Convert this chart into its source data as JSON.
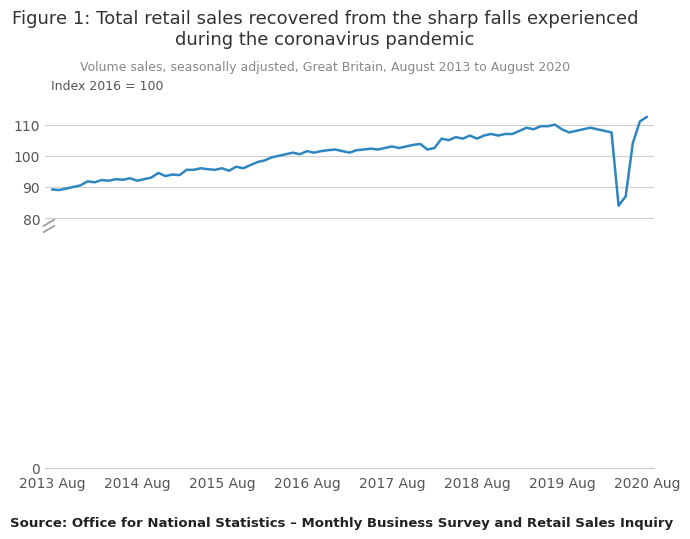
{
  "title": "Figure 1: Total retail sales recovered from the sharp falls experienced\nduring the coronavirus pandemic",
  "subtitle": "Volume sales, seasonally adjusted, Great Britain, August 2013 to August 2020",
  "ylabel_note": "Index 2016 = 100",
  "source_text": "Source: Office for National Statistics – Monthly Business Survey and Retail Sales Inquiry",
  "line_color": "#2E86C1",
  "background_color": "#ffffff",
  "yticks": [
    0,
    80,
    90,
    100,
    110
  ],
  "xtick_labels": [
    "2013 Aug",
    "2014 Aug",
    "2015 Aug",
    "2016 Aug",
    "2017 Aug",
    "2018 Aug",
    "2019 Aug",
    "2020 Aug"
  ],
  "xtick_positions": [
    0,
    12,
    24,
    36,
    48,
    60,
    72,
    84
  ],
  "xlim": [
    -1,
    85
  ],
  "ylim": [
    0,
    118
  ],
  "values": [
    89.2,
    89.0,
    89.5,
    90.0,
    90.5,
    91.8,
    91.5,
    92.2,
    92.0,
    92.5,
    92.3,
    92.8,
    92.0,
    92.5,
    93.0,
    94.5,
    93.5,
    94.0,
    93.8,
    95.5,
    95.5,
    96.0,
    95.7,
    95.5,
    96.0,
    95.2,
    96.5,
    96.0,
    97.0,
    98.0,
    98.5,
    99.5,
    100.0,
    100.5,
    101.0,
    100.5,
    101.5,
    101.0,
    101.5,
    101.8,
    102.0,
    101.5,
    101.0,
    101.8,
    102.0,
    102.3,
    102.0,
    102.5,
    103.0,
    102.5,
    103.0,
    103.5,
    103.8,
    102.0,
    102.5,
    105.5,
    105.0,
    106.0,
    105.5,
    106.5,
    105.5,
    106.5,
    107.0,
    106.5,
    107.0,
    107.0,
    108.0,
    109.0,
    108.5,
    109.5,
    109.5,
    110.0,
    108.5,
    107.5,
    108.0,
    108.5,
    109.0,
    108.5,
    108.0,
    107.5,
    84.0,
    87.0,
    104.0,
    111.0,
    112.5
  ]
}
